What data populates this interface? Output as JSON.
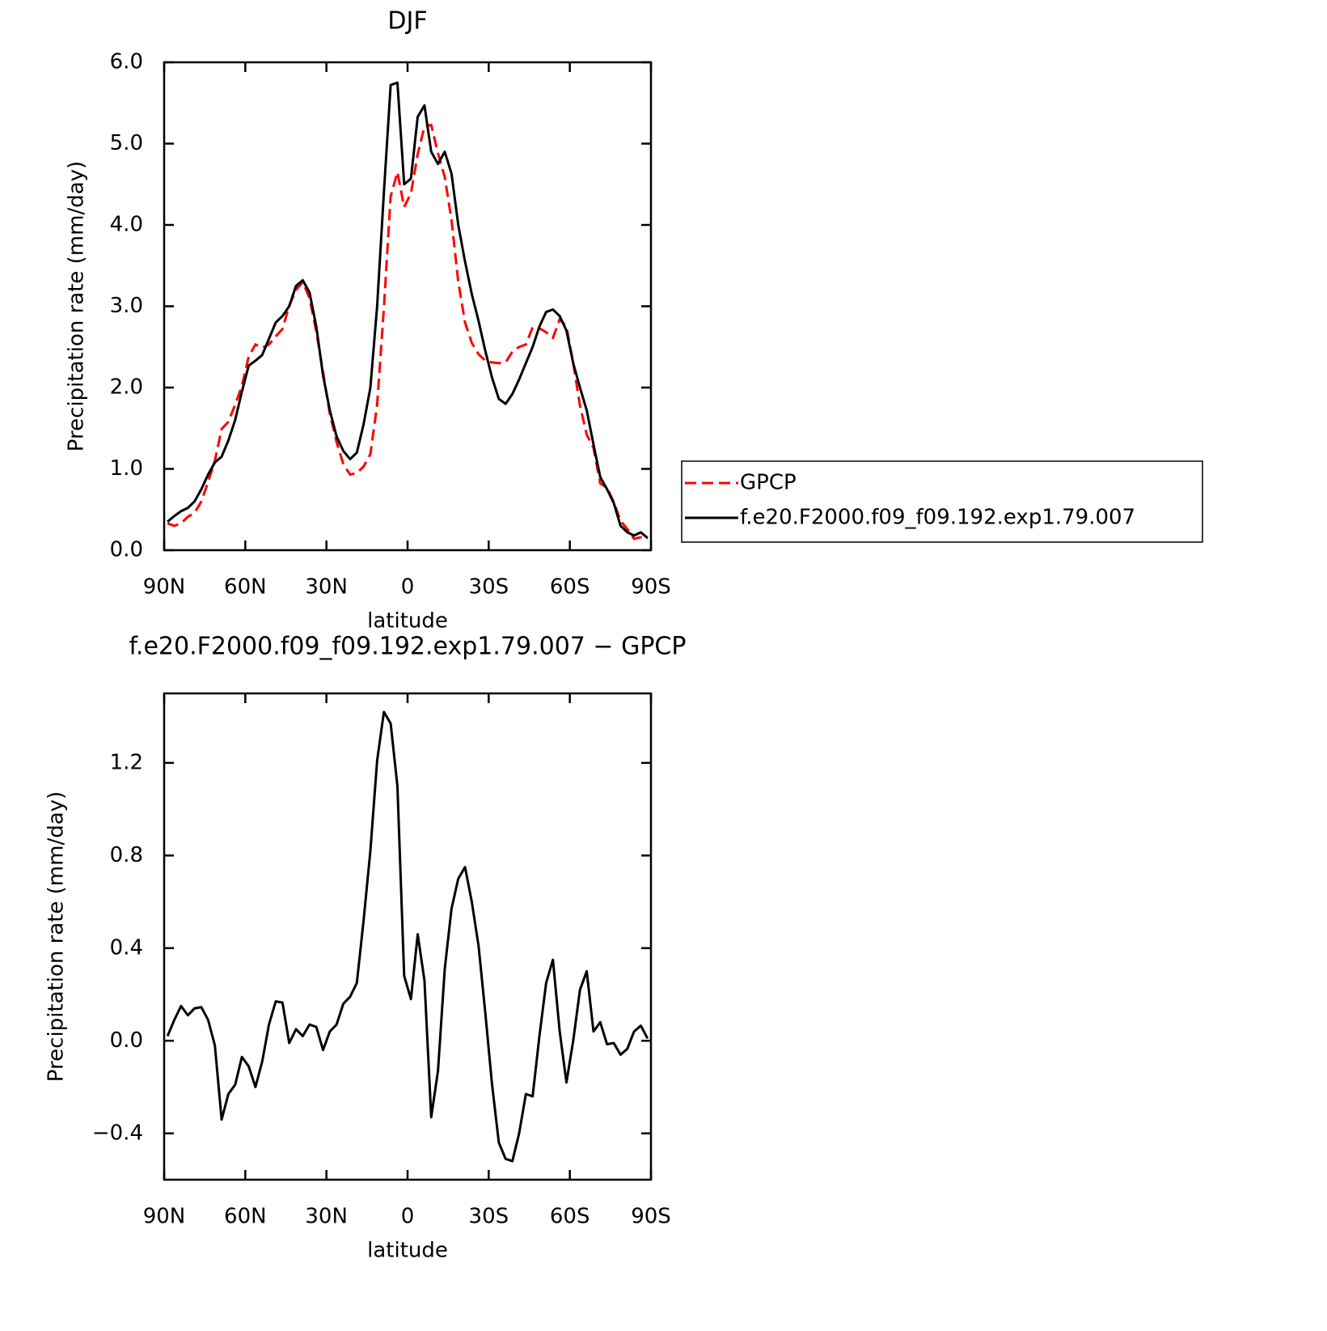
{
  "chart_data": [
    {
      "type": "line",
      "title": "DJF",
      "x_label": "latitude",
      "y_label": "Precipitation rate (mm/day)",
      "x": [
        88.75,
        86.25,
        83.75,
        81.25,
        78.75,
        76.25,
        73.75,
        71.25,
        68.75,
        66.25,
        63.75,
        61.25,
        58.75,
        56.25,
        53.75,
        51.25,
        48.75,
        46.25,
        43.75,
        41.25,
        38.75,
        36.25,
        33.75,
        31.25,
        28.75,
        26.25,
        23.75,
        21.25,
        18.75,
        16.25,
        13.75,
        11.25,
        8.75,
        6.25,
        3.75,
        1.25,
        -1.25,
        -3.75,
        -6.25,
        -8.75,
        -11.25,
        -13.75,
        -16.25,
        -18.75,
        -21.25,
        -23.75,
        -26.25,
        -28.75,
        -31.25,
        -33.75,
        -36.25,
        -38.75,
        -41.25,
        -43.75,
        -46.25,
        -48.75,
        -51.25,
        -53.75,
        -56.25,
        -58.75,
        -61.25,
        -63.75,
        -66.25,
        -68.75,
        -71.25,
        -73.75,
        -76.25,
        -78.75,
        -81.25,
        -83.75,
        -86.25,
        -88.75
      ],
      "series": [
        {
          "name": "GPCP",
          "color": "#ff0000",
          "dashed": true,
          "values": [
            0.33,
            0.3,
            0.33,
            0.41,
            0.46,
            0.6,
            0.84,
            1.1,
            1.49,
            1.58,
            1.79,
            2.02,
            2.38,
            2.53,
            2.49,
            2.53,
            2.63,
            2.72,
            3.01,
            3.2,
            3.3,
            3.1,
            2.69,
            2.19,
            1.68,
            1.33,
            1.06,
            0.93,
            0.95,
            1.03,
            1.18,
            1.79,
            2.98,
            4.35,
            4.65,
            4.22,
            4.39,
            4.87,
            5.21,
            5.23,
            4.88,
            4.59,
            4.06,
            3.3,
            2.8,
            2.55,
            2.41,
            2.33,
            2.31,
            2.3,
            2.31,
            2.44,
            2.5,
            2.53,
            2.74,
            2.73,
            2.68,
            2.61,
            2.84,
            2.75,
            2.3,
            1.78,
            1.42,
            1.26,
            0.82,
            0.77,
            0.59,
            0.36,
            0.26,
            0.14,
            0.16,
            0.14
          ]
        },
        {
          "name": "f.e20.F2000.f09_f09.192.exp1.79.007",
          "color": "#000000",
          "dashed": false,
          "values": [
            0.35,
            0.42,
            0.48,
            0.52,
            0.6,
            0.75,
            0.93,
            1.08,
            1.15,
            1.35,
            1.6,
            1.95,
            2.27,
            2.33,
            2.4,
            2.6,
            2.8,
            2.88,
            3.0,
            3.25,
            3.32,
            3.17,
            2.75,
            2.15,
            1.72,
            1.4,
            1.22,
            1.12,
            1.2,
            1.55,
            2.0,
            3.0,
            4.4,
            5.72,
            5.75,
            4.5,
            4.57,
            5.33,
            5.47,
            4.9,
            4.75,
            4.9,
            4.63,
            4.0,
            3.55,
            3.15,
            2.82,
            2.45,
            2.12,
            1.86,
            1.8,
            1.92,
            2.1,
            2.3,
            2.5,
            2.75,
            2.93,
            2.96,
            2.88,
            2.7,
            2.3,
            2.0,
            1.72,
            1.3,
            0.9,
            0.75,
            0.58,
            0.3,
            0.22,
            0.18,
            0.22,
            0.15
          ]
        }
      ],
      "xlim": [
        90,
        -90
      ],
      "xticks": [
        {
          "value": 90,
          "label": "90N"
        },
        {
          "value": 60,
          "label": "60N"
        },
        {
          "value": 30,
          "label": "30N"
        },
        0,
        {
          "value": -30,
          "label": "30S"
        },
        {
          "value": -60,
          "label": "60S"
        },
        {
          "value": -90,
          "label": "90S"
        }
      ],
      "ylim": [
        0,
        6
      ],
      "yticks": [
        {
          "value": 0,
          "label": "0.0"
        },
        {
          "value": 1,
          "label": "1.0"
        },
        {
          "value": 2,
          "label": "2.0"
        },
        {
          "value": 3,
          "label": "3.0"
        },
        {
          "value": 4,
          "label": "4.0"
        },
        {
          "value": 5,
          "label": "5.0"
        },
        {
          "value": 6,
          "label": "6.0"
        }
      ],
      "legend": "right"
    },
    {
      "type": "line",
      "title": "f.e20.F2000.f09_f09.192.exp1.79.007 − GPCP",
      "x_label": "latitude",
      "y_label": "Precipitation rate (mm/day)",
      "x": [
        88.75,
        86.25,
        83.75,
        81.25,
        78.75,
        76.25,
        73.75,
        71.25,
        68.75,
        66.25,
        63.75,
        61.25,
        58.75,
        56.25,
        53.75,
        51.25,
        48.75,
        46.25,
        43.75,
        41.25,
        38.75,
        36.25,
        33.75,
        31.25,
        28.75,
        26.25,
        23.75,
        21.25,
        18.75,
        16.25,
        13.75,
        11.25,
        8.75,
        6.25,
        3.75,
        1.25,
        -1.25,
        -3.75,
        -6.25,
        -8.75,
        -11.25,
        -13.75,
        -16.25,
        -18.75,
        -21.25,
        -23.75,
        -26.25,
        -28.75,
        -31.25,
        -33.75,
        -36.25,
        -38.75,
        -41.25,
        -43.75,
        -46.25,
        -48.75,
        -51.25,
        -53.75,
        -56.25,
        -58.75,
        -61.25,
        -63.75,
        -66.25,
        -68.75,
        -71.25,
        -73.75,
        -76.25,
        -78.75,
        -81.25,
        -83.75,
        -86.25,
        -88.75
      ],
      "values": [
        0.02,
        0.09,
        0.15,
        0.11,
        0.14,
        0.145,
        0.09,
        -0.02,
        -0.34,
        -0.23,
        -0.19,
        -0.07,
        -0.11,
        -0.2,
        -0.09,
        0.07,
        0.17,
        0.165,
        -0.01,
        0.05,
        0.02,
        0.07,
        0.06,
        -0.04,
        0.04,
        0.07,
        0.16,
        0.19,
        0.25,
        0.52,
        0.82,
        1.21,
        1.42,
        1.37,
        1.1,
        0.28,
        0.18,
        0.46,
        0.26,
        -0.33,
        -0.13,
        0.31,
        0.57,
        0.7,
        0.75,
        0.6,
        0.41,
        0.12,
        -0.19,
        -0.44,
        -0.51,
        -0.52,
        -0.4,
        -0.23,
        -0.24,
        0.02,
        0.25,
        0.35,
        0.04,
        -0.18,
        0.0,
        0.22,
        0.3,
        0.04,
        0.08,
        -0.015,
        -0.01,
        -0.06,
        -0.035,
        0.04,
        0.065,
        0.01
      ],
      "color": "#000000",
      "xlim": [
        90,
        -90
      ],
      "xticks": [
        {
          "value": 90,
          "label": "90N"
        },
        {
          "value": 60,
          "label": "60N"
        },
        {
          "value": 30,
          "label": "30N"
        },
        0,
        {
          "value": -30,
          "label": "30S"
        },
        {
          "value": -60,
          "label": "60S"
        },
        {
          "value": -90,
          "label": "90S"
        }
      ],
      "ylim": [
        -0.6,
        1.5
      ],
      "yticks": [
        {
          "value": -0.4,
          "label": "−0.4"
        },
        {
          "value": 0,
          "label": "0.0"
        },
        0.4,
        0.8,
        1.2
      ]
    }
  ]
}
